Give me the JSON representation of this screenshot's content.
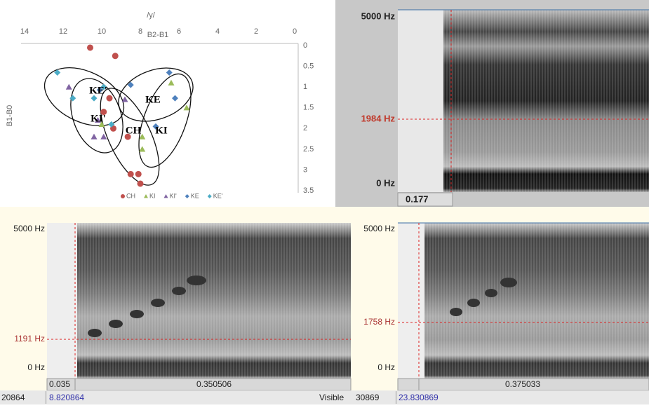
{
  "chart_data": {
    "type": "scatter",
    "title": "/y/",
    "x_label": "B2-B1",
    "y_label": "B1-B0",
    "xlim": [
      14,
      0
    ],
    "xticks": [
      14,
      12,
      10,
      8,
      6,
      4,
      2,
      0
    ],
    "ylim": [
      0,
      3.5
    ],
    "yticks": [
      0,
      0.5,
      1,
      1.5,
      2,
      2.5,
      3,
      3.5
    ],
    "series": [
      {
        "name": "CH",
        "color": "#c0504d",
        "marker": "circle",
        "x": [
          10.6,
          9.3,
          9.9,
          9.6,
          9.4,
          8.65,
          8.5,
          8.1,
          8.0
        ],
        "values": [
          0.05,
          0.25,
          1.6,
          1.27,
          2.0,
          2.2,
          3.1,
          3.1,
          3.33
        ]
      },
      {
        "name": "KI",
        "color": "#9bbb59",
        "marker": "triangle",
        "x": [
          6.4,
          5.6,
          7.9,
          7.9,
          10.0
        ],
        "values": [
          0.9,
          1.5,
          2.2,
          2.5,
          1.9
        ]
      },
      {
        "name": "KI'",
        "color": "#8064a2",
        "marker": "triangle",
        "x": [
          11.7,
          10.2,
          9.9,
          10.4,
          8.8
        ],
        "values": [
          1.0,
          1.8,
          2.2,
          2.2,
          1.3
        ]
      },
      {
        "name": "KE",
        "color": "#4f81bd",
        "marker": "diamond",
        "x": [
          6.5,
          8.5,
          6.2,
          7.2,
          10.1
        ],
        "values": [
          0.65,
          0.95,
          1.27,
          1.95,
          1.07
        ]
      },
      {
        "name": "KE'",
        "color": "#4bacc6",
        "marker": "diamond",
        "x": [
          12.3,
          11.5,
          10.4,
          9.9,
          9.5
        ],
        "values": [
          0.65,
          1.27,
          1.27,
          1.0,
          1.9
        ]
      }
    ],
    "annotations": [
      "KE'",
      "KE",
      "KI'",
      "CH",
      "KI"
    ]
  },
  "spectrograms": [
    {
      "freq_max": "5000 Hz",
      "cursor_freq": "1984 Hz",
      "freq_min": "0 Hz",
      "time_start": "0.177"
    },
    {
      "freq_max": "5000 Hz",
      "cursor_freq": "1191 Hz",
      "freq_min": "0 Hz",
      "time_start": "0.035",
      "time_mid": "0.350506",
      "window_start": "20864",
      "window_time": "8.820864",
      "visible": "Visible"
    },
    {
      "freq_max": "5000 Hz",
      "cursor_freq": "1758 Hz",
      "freq_min": "0 Hz",
      "time_mid": "0.375033",
      "window_start": "30869",
      "window_time": "23.830869"
    }
  ]
}
